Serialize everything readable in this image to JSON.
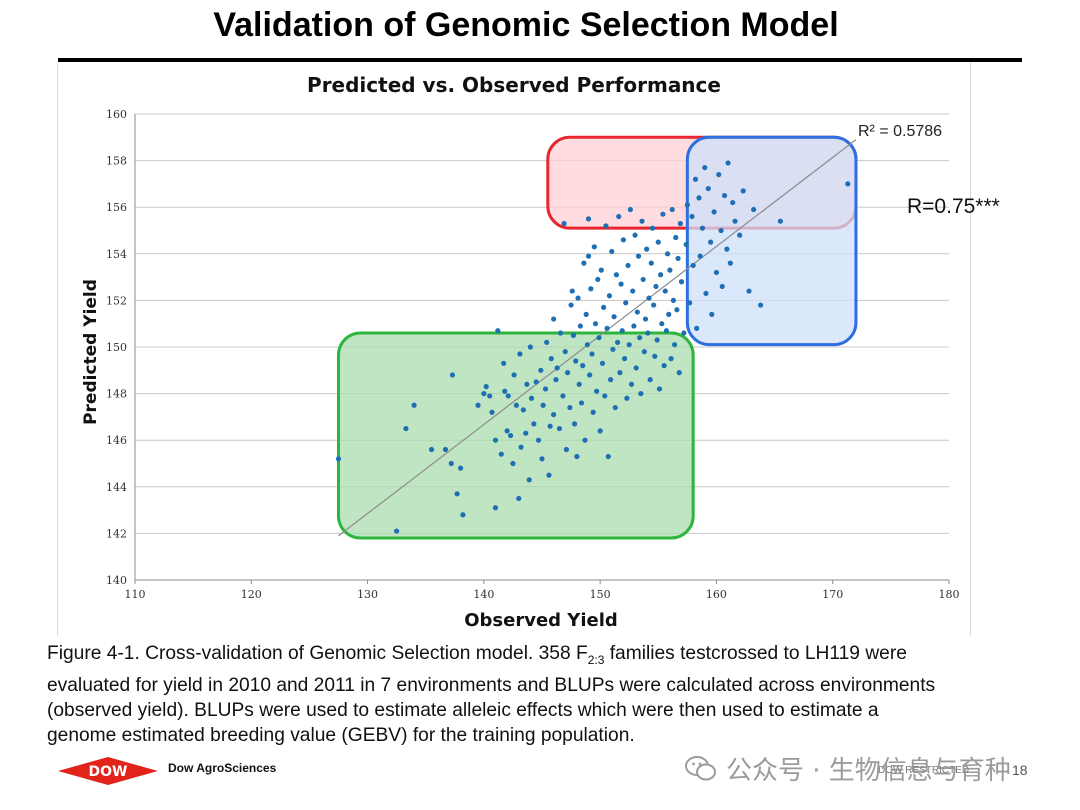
{
  "slide": {
    "title": "Validation of Genomic Selection Model"
  },
  "chart_data": {
    "type": "scatter",
    "title": "Predicted vs. Observed Performance",
    "xlabel": "Observed Yield",
    "ylabel": "Predicted Yield",
    "xlim": [
      110,
      180
    ],
    "ylim": [
      140,
      160
    ],
    "xticks": [
      110,
      120,
      130,
      140,
      150,
      160,
      170,
      180
    ],
    "yticks": [
      140,
      142,
      144,
      146,
      148,
      150,
      152,
      154,
      156,
      158,
      160
    ],
    "grid": "horizontal",
    "point_color": "#1f6fb5",
    "trendline": {
      "x": [
        127.5,
        172
      ],
      "y": [
        141.9,
        158.9
      ],
      "color": "#8c8c8c"
    },
    "r2_label": "R² = 0.5786",
    "r_label": "R=0.75***",
    "regions": [
      {
        "name": "high-predicted",
        "x": [
          145.5,
          172
        ],
        "y": [
          155.1,
          159.0
        ],
        "fill": "#ffd0d6",
        "stroke": "#e8262f"
      },
      {
        "name": "high-observed",
        "x": [
          157.5,
          172
        ],
        "y": [
          150.1,
          159.0
        ],
        "fill": "#cfe0fb",
        "stroke": "#2d6fe0"
      },
      {
        "name": "low-both",
        "x": [
          127.5,
          158
        ],
        "y": [
          141.8,
          150.6
        ],
        "fill": "#a9dcae",
        "stroke": "#2db53d"
      }
    ],
    "points": [
      [
        127.5,
        145.2
      ],
      [
        132.5,
        142.1
      ],
      [
        133.3,
        146.5
      ],
      [
        134,
        147.5
      ],
      [
        135.5,
        145.6
      ],
      [
        136.7,
        145.6
      ],
      [
        137.3,
        148.8
      ],
      [
        137.2,
        145
      ],
      [
        137.7,
        143.7
      ],
      [
        138,
        144.8
      ],
      [
        138.2,
        142.8
      ],
      [
        139.5,
        147.5
      ],
      [
        140,
        148
      ],
      [
        140.2,
        148.3
      ],
      [
        140.5,
        147.9
      ],
      [
        140.7,
        147.2
      ],
      [
        141,
        146
      ],
      [
        141,
        143.1
      ],
      [
        141.2,
        150.7
      ],
      [
        141.5,
        145.4
      ],
      [
        141.7,
        149.3
      ],
      [
        141.8,
        148.1
      ],
      [
        142,
        146.4
      ],
      [
        142.1,
        147.9
      ],
      [
        142.3,
        146.2
      ],
      [
        142.5,
        145
      ],
      [
        142.6,
        148.8
      ],
      [
        142.8,
        147.5
      ],
      [
        143,
        143.5
      ],
      [
        143.1,
        149.7
      ],
      [
        143.2,
        145.7
      ],
      [
        143.4,
        147.3
      ],
      [
        143.6,
        146.3
      ],
      [
        143.7,
        148.4
      ],
      [
        143.9,
        144.3
      ],
      [
        144,
        150
      ],
      [
        144.1,
        147.8
      ],
      [
        144.3,
        146.7
      ],
      [
        144.5,
        148.5
      ],
      [
        144.7,
        146
      ],
      [
        144.9,
        149
      ],
      [
        145,
        145.2
      ],
      [
        145.1,
        147.5
      ],
      [
        145.3,
        148.2
      ],
      [
        145.4,
        150.2
      ],
      [
        145.6,
        144.5
      ],
      [
        145.7,
        146.6
      ],
      [
        145.8,
        149.5
      ],
      [
        146,
        147.1
      ],
      [
        146,
        151.2
      ],
      [
        146.2,
        148.6
      ],
      [
        146.3,
        149.1
      ],
      [
        146.5,
        146.5
      ],
      [
        146.6,
        150.6
      ],
      [
        146.8,
        147.9
      ],
      [
        146.9,
        155.3
      ],
      [
        147,
        149.8
      ],
      [
        147.1,
        145.6
      ],
      [
        147.2,
        148.9
      ],
      [
        147.4,
        147.4
      ],
      [
        147.5,
        151.8
      ],
      [
        147.6,
        152.4
      ],
      [
        147.7,
        150.5
      ],
      [
        147.8,
        146.7
      ],
      [
        147.9,
        149.4
      ],
      [
        148,
        145.3
      ],
      [
        148.1,
        152.1
      ],
      [
        148.2,
        148.4
      ],
      [
        148.3,
        150.9
      ],
      [
        148.4,
        147.6
      ],
      [
        148.5,
        149.2
      ],
      [
        148.6,
        153.6
      ],
      [
        148.7,
        146
      ],
      [
        148.8,
        151.4
      ],
      [
        148.9,
        150.1
      ],
      [
        149,
        153.9
      ],
      [
        149.1,
        148.8
      ],
      [
        149,
        155.5
      ],
      [
        149.2,
        152.5
      ],
      [
        149.3,
        149.7
      ],
      [
        149.4,
        147.2
      ],
      [
        149.5,
        154.3
      ],
      [
        149.6,
        151
      ],
      [
        149.7,
        148.1
      ],
      [
        149.8,
        152.9
      ],
      [
        149.9,
        150.4
      ],
      [
        150,
        146.4
      ],
      [
        150.1,
        153.3
      ],
      [
        150.2,
        149.3
      ],
      [
        150.3,
        151.7
      ],
      [
        150.4,
        147.9
      ],
      [
        150.5,
        155.2
      ],
      [
        150.6,
        150.8
      ],
      [
        150.7,
        145.3
      ],
      [
        150.8,
        152.2
      ],
      [
        150.9,
        148.6
      ],
      [
        151,
        154.1
      ],
      [
        151.1,
        149.9
      ],
      [
        151.2,
        151.3
      ],
      [
        151.3,
        147.4
      ],
      [
        151.4,
        153.1
      ],
      [
        151.5,
        150.2
      ],
      [
        151.6,
        155.6
      ],
      [
        151.7,
        148.9
      ],
      [
        151.8,
        152.7
      ],
      [
        151.9,
        150.7
      ],
      [
        152,
        154.6
      ],
      [
        152.1,
        149.5
      ],
      [
        152.2,
        151.9
      ],
      [
        152.3,
        147.8
      ],
      [
        152.4,
        153.5
      ],
      [
        152.5,
        150.1
      ],
      [
        152.6,
        155.9
      ],
      [
        152.7,
        148.4
      ],
      [
        152.8,
        152.4
      ],
      [
        152.9,
        150.9
      ],
      [
        153,
        154.8
      ],
      [
        153.1,
        149.1
      ],
      [
        153.2,
        151.5
      ],
      [
        153.3,
        153.9
      ],
      [
        153.4,
        150.4
      ],
      [
        153.5,
        148
      ],
      [
        153.6,
        155.4
      ],
      [
        153.7,
        152.9
      ],
      [
        153.8,
        149.8
      ],
      [
        153.9,
        151.2
      ],
      [
        154,
        154.2
      ],
      [
        154.1,
        150.6
      ],
      [
        154.2,
        152.1
      ],
      [
        154.3,
        148.6
      ],
      [
        154.4,
        153.6
      ],
      [
        154.5,
        155.1
      ],
      [
        154.6,
        151.8
      ],
      [
        154.7,
        149.6
      ],
      [
        154.8,
        152.6
      ],
      [
        154.9,
        150.3
      ],
      [
        155,
        154.5
      ],
      [
        155.1,
        148.2
      ],
      [
        155.2,
        153.1
      ],
      [
        155.3,
        151
      ],
      [
        155.4,
        155.7
      ],
      [
        155.5,
        149.2
      ],
      [
        155.6,
        152.4
      ],
      [
        155.7,
        150.7
      ],
      [
        155.8,
        154
      ],
      [
        155.9,
        151.4
      ],
      [
        156,
        153.3
      ],
      [
        156.1,
        149.5
      ],
      [
        156.2,
        155.9
      ],
      [
        156.3,
        152
      ],
      [
        156.4,
        150.1
      ],
      [
        156.5,
        154.7
      ],
      [
        156.6,
        151.6
      ],
      [
        156.7,
        153.8
      ],
      [
        156.8,
        148.9
      ],
      [
        156.9,
        155.3
      ],
      [
        157,
        152.8
      ],
      [
        157.2,
        150.6
      ],
      [
        157.4,
        154.4
      ],
      [
        157.5,
        156.1
      ],
      [
        157.7,
        151.9
      ],
      [
        157.9,
        155.6
      ],
      [
        158,
        153.5
      ],
      [
        158.2,
        157.2
      ],
      [
        158.3,
        150.8
      ],
      [
        158.5,
        156.4
      ],
      [
        158.6,
        153.9
      ],
      [
        158.8,
        155.1
      ],
      [
        159,
        157.7
      ],
      [
        159.1,
        152.3
      ],
      [
        159.3,
        156.8
      ],
      [
        159.5,
        154.5
      ],
      [
        159.6,
        151.4
      ],
      [
        159.8,
        155.8
      ],
      [
        160,
        153.2
      ],
      [
        160.2,
        157.4
      ],
      [
        160.4,
        155
      ],
      [
        160.5,
        152.6
      ],
      [
        160.7,
        156.5
      ],
      [
        160.9,
        154.2
      ],
      [
        161,
        157.9
      ],
      [
        161.2,
        153.6
      ],
      [
        161.4,
        156.2
      ],
      [
        161.6,
        155.4
      ],
      [
        162,
        154.8
      ],
      [
        162.3,
        156.7
      ],
      [
        162.8,
        152.4
      ],
      [
        163.2,
        155.9
      ],
      [
        163.8,
        151.8
      ],
      [
        165.5,
        155.4
      ],
      [
        171.3,
        157
      ]
    ]
  },
  "caption": {
    "line1_pre": "Figure 4-1.  Cross-validation of Genomic Selection model.  358 F",
    "line1_sub": "2:3",
    "line1_post": " families testcrossed to LH119 were",
    "line2": "evaluated for yield in 2010 and 2011 in 7 environments and BLUPs were calculated across environments",
    "line3": "(observed yield).  BLUPs were used to estimate alleleic effects which were then used to estimate a",
    "line4": "genome estimated breeding value (GEBV) for the training population."
  },
  "footer": {
    "logo_text": "DOW",
    "company": "Dow AgroSciences",
    "confidential": "DOW RESTRICTED",
    "page": "18",
    "watermark": "公众号 · 生物信息与育种"
  }
}
